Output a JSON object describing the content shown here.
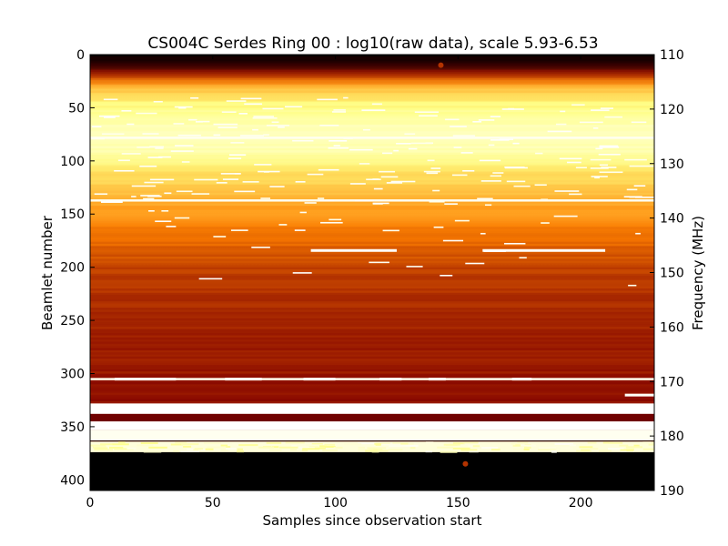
{
  "chart_data": {
    "type": "heatmap",
    "title": "CS004C Serdes Ring 00 : log10(raw data), scale 5.93-6.53",
    "xlabel": "Samples since observation start",
    "ylabel": "Beamlet number",
    "y2label": "Frequency (MHz)",
    "xlim": [
      0,
      230
    ],
    "ylim": [
      0,
      410
    ],
    "y2lim": [
      110,
      190
    ],
    "y_inverted": true,
    "colormap": "afmhot",
    "xticks": [
      0,
      50,
      100,
      150,
      200
    ],
    "yticks": [
      0,
      50,
      100,
      150,
      200,
      250,
      300,
      350,
      400
    ],
    "y2ticks": [
      110,
      120,
      130,
      140,
      150,
      160,
      170,
      180,
      190
    ],
    "row_intensity_profile": [
      {
        "beamlet": 0,
        "value": 0.02
      },
      {
        "beamlet": 10,
        "value": 0.12
      },
      {
        "beamlet": 20,
        "value": 0.38
      },
      {
        "beamlet": 30,
        "value": 0.62
      },
      {
        "beamlet": 45,
        "value": 0.74
      },
      {
        "beamlet": 60,
        "value": 0.82
      },
      {
        "beamlet": 75,
        "value": 0.88
      },
      {
        "beamlet": 90,
        "value": 0.84
      },
      {
        "beamlet": 110,
        "value": 0.7
      },
      {
        "beamlet": 135,
        "value": 0.6
      },
      {
        "beamlet": 150,
        "value": 0.54
      },
      {
        "beamlet": 175,
        "value": 0.46
      },
      {
        "beamlet": 200,
        "value": 0.38
      },
      {
        "beamlet": 225,
        "value": 0.35
      },
      {
        "beamlet": 250,
        "value": 0.33
      },
      {
        "beamlet": 275,
        "value": 0.31
      },
      {
        "beamlet": 300,
        "value": 0.3
      },
      {
        "beamlet": 320,
        "value": 0.28
      },
      {
        "beamlet": 328,
        "value": 0.28
      }
    ],
    "bands": [
      {
        "from": 328,
        "to": 338,
        "value": 1.0
      },
      {
        "from": 338,
        "to": 345,
        "value": 0.22
      },
      {
        "from": 345,
        "to": 353,
        "value": 1.0
      },
      {
        "from": 353,
        "to": 363,
        "value": 0.97
      },
      {
        "from": 363,
        "to": 364,
        "value": 0.05
      },
      {
        "from": 364,
        "to": 374,
        "value": 0.93
      },
      {
        "from": 374,
        "to": 410,
        "value": 0.0
      }
    ],
    "bright_rows": [
      78,
      137,
      305
    ],
    "rfi_streaks": [
      {
        "beamlet": 184,
        "x_start": 90,
        "x_end": 125
      },
      {
        "beamlet": 184,
        "x_start": 160,
        "x_end": 210
      },
      {
        "beamlet": 305,
        "x_start": 10,
        "x_end": 35
      },
      {
        "beamlet": 305,
        "x_start": 55,
        "x_end": 70
      },
      {
        "beamlet": 305,
        "x_start": 87,
        "x_end": 100
      },
      {
        "beamlet": 305,
        "x_start": 118,
        "x_end": 127
      },
      {
        "beamlet": 305,
        "x_start": 138,
        "x_end": 145
      },
      {
        "beamlet": 305,
        "x_start": 172,
        "x_end": 180
      },
      {
        "beamlet": 320,
        "x_start": 218,
        "x_end": 230
      }
    ],
    "hot_spots": [
      {
        "x": 143,
        "beamlet": 10
      },
      {
        "x": 153,
        "beamlet": 385
      }
    ]
  }
}
